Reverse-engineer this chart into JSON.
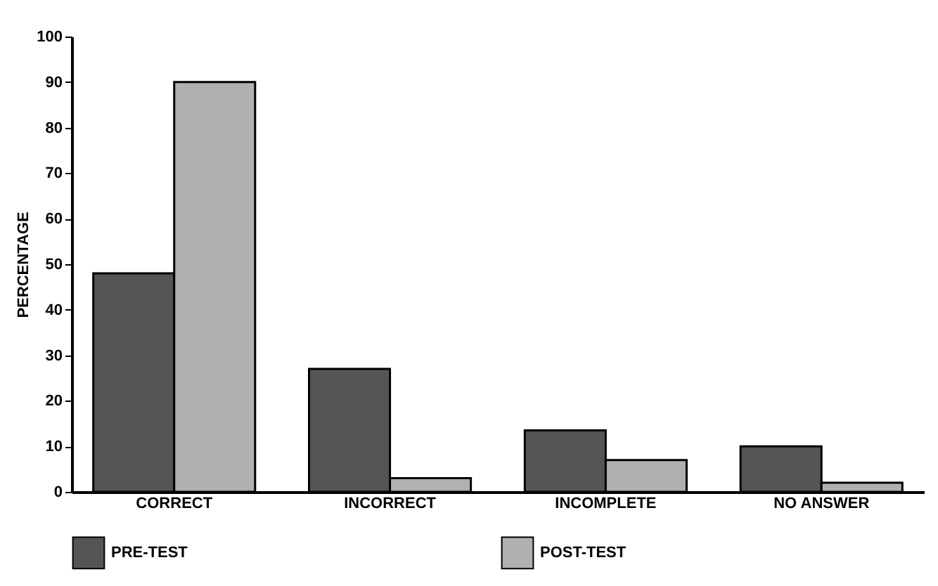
{
  "chart_data": {
    "type": "bar",
    "ylabel": "PERCENTAGE",
    "categories": [
      "CORRECT",
      "INCORRECT",
      "INCOMPLETE",
      "NO ANSWER"
    ],
    "series": [
      {
        "name": "PRE-TEST",
        "color": "#555555",
        "values": [
          48,
          27,
          13.5,
          10
        ]
      },
      {
        "name": "POST-TEST",
        "color": "#b0b0b0",
        "values": [
          90,
          3,
          7,
          2
        ]
      }
    ],
    "ylim": [
      0,
      100
    ],
    "yticks": [
      0,
      10,
      20,
      30,
      40,
      50,
      60,
      70,
      80,
      90,
      100
    ],
    "grid": false,
    "legend": "bottom"
  }
}
